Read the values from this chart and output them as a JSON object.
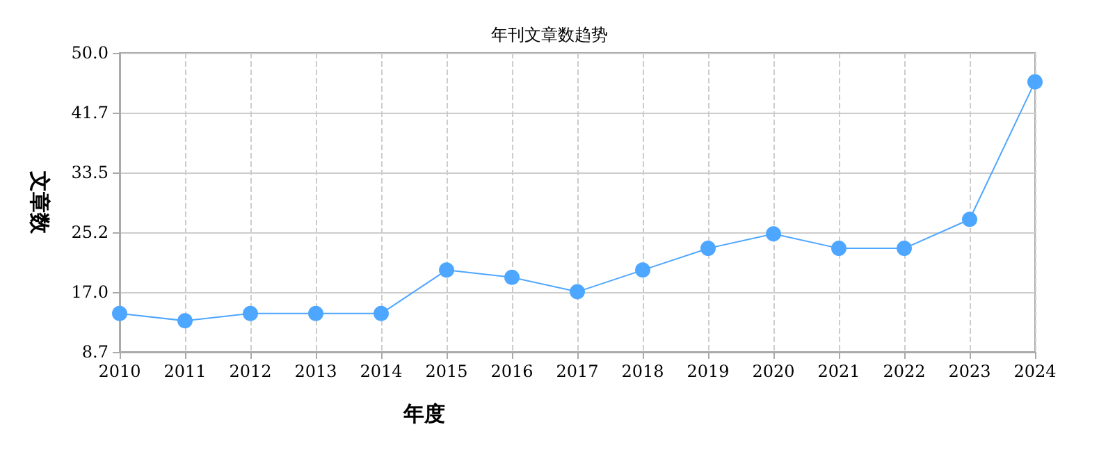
{
  "chart_data": {
    "type": "line",
    "title": "年刊文章数趋势",
    "xlabel": "年度",
    "ylabel": "文章数",
    "categories": [
      "2010",
      "2011",
      "2012",
      "2013",
      "2014",
      "2015",
      "2016",
      "2017",
      "2018",
      "2019",
      "2020",
      "2021",
      "2022",
      "2023",
      "2024"
    ],
    "series": [
      {
        "color": "#4da6ff",
        "values": [
          14,
          13,
          14,
          14,
          14,
          20,
          19,
          17,
          20,
          23,
          25,
          23,
          23,
          27,
          46
        ]
      }
    ],
    "ylim": [
      8.7,
      50.0
    ],
    "yticks": [
      8.7,
      {
        "value": 17,
        "label": "17.0"
      },
      25.2,
      33.5,
      41.7,
      {
        "value": 50,
        "label": "50.0"
      }
    ],
    "grid": true,
    "marker": "circle",
    "line_style": "solid"
  }
}
